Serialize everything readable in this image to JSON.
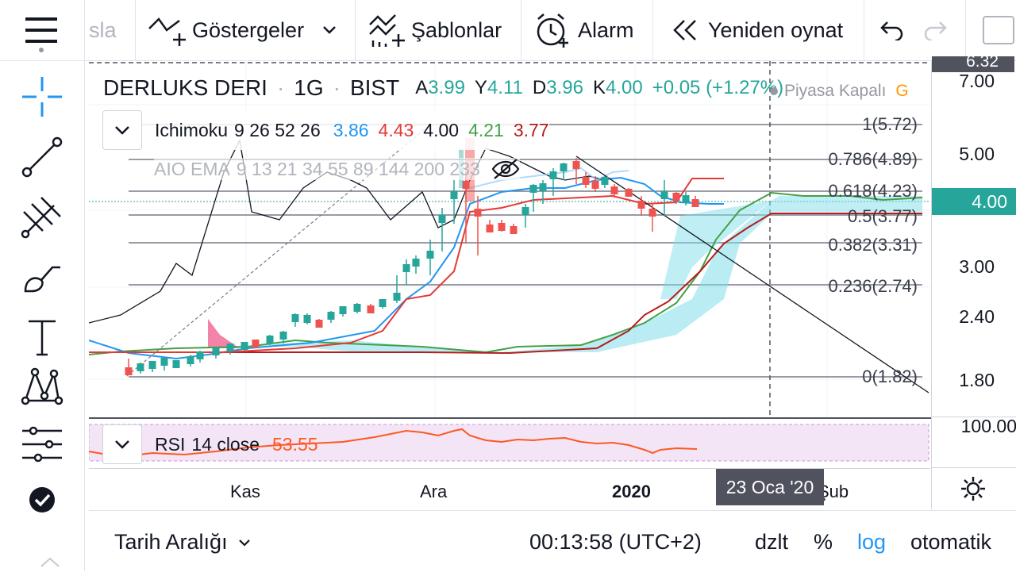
{
  "toolbar": {
    "partial_left": "sla",
    "indicators": "Göstergeler",
    "templates": "Şablonlar",
    "alarm": "Alarm",
    "replay": "Yeniden oynat"
  },
  "symbol": {
    "name": "DERLUKS DERI",
    "interval": "1G",
    "exchange": "BIST",
    "o_label": "A",
    "o": "3.99",
    "h_label": "Y",
    "h": "4.11",
    "l_label": "D",
    "l": "3.96",
    "c_label": "K",
    "c": "4.00",
    "change": "+0.05 (+1.27%)",
    "market_status": "Piyasa Kapalı",
    "market_flag": "G"
  },
  "ichimoku": {
    "name": "Ichimoku",
    "params": "9 26 52 26",
    "v1": "3.86",
    "v2": "4.43",
    "v3": "4.00",
    "v4": "4.21",
    "v5": "3.77"
  },
  "ema": {
    "name": "AIO EMA",
    "params": "9 13 21 34 55 89 144 200 233"
  },
  "rsi": {
    "name": "RSI",
    "params": "14 close",
    "value": "53.55"
  },
  "fib_levels": [
    "1(5.72)",
    "0.786(4.89)",
    "0.618(4.23)",
    "0.5(3.77)",
    "0.382(3.31)",
    "0.236(2.74)",
    "0(1.82)"
  ],
  "price_scale": {
    "partial_top": "6.32",
    "ticks": [
      "7.00",
      "5.00",
      "3.00",
      "2.40",
      "1.80"
    ],
    "current": "4.00",
    "rsi_top": "100.00"
  },
  "time_scale": {
    "ticks": [
      "Kas",
      "Ara",
      "2020",
      "Şub"
    ],
    "crosshair_label": "23 Oca '20"
  },
  "bottom": {
    "range": "Tarih Aralığı",
    "clock": "00:13:58 (UTC+2)",
    "extended": "dzlt",
    "percent": "%",
    "log": "log",
    "auto": "otomatik"
  },
  "colors": {
    "up": "#26a69a",
    "down": "#ef5350",
    "accent": "#2196f3",
    "cloud_up": "#80deea",
    "cloud_down": "#e91e63",
    "rsi_line": "#ff5722",
    "rsi_bg": "#f3e5f5"
  }
}
